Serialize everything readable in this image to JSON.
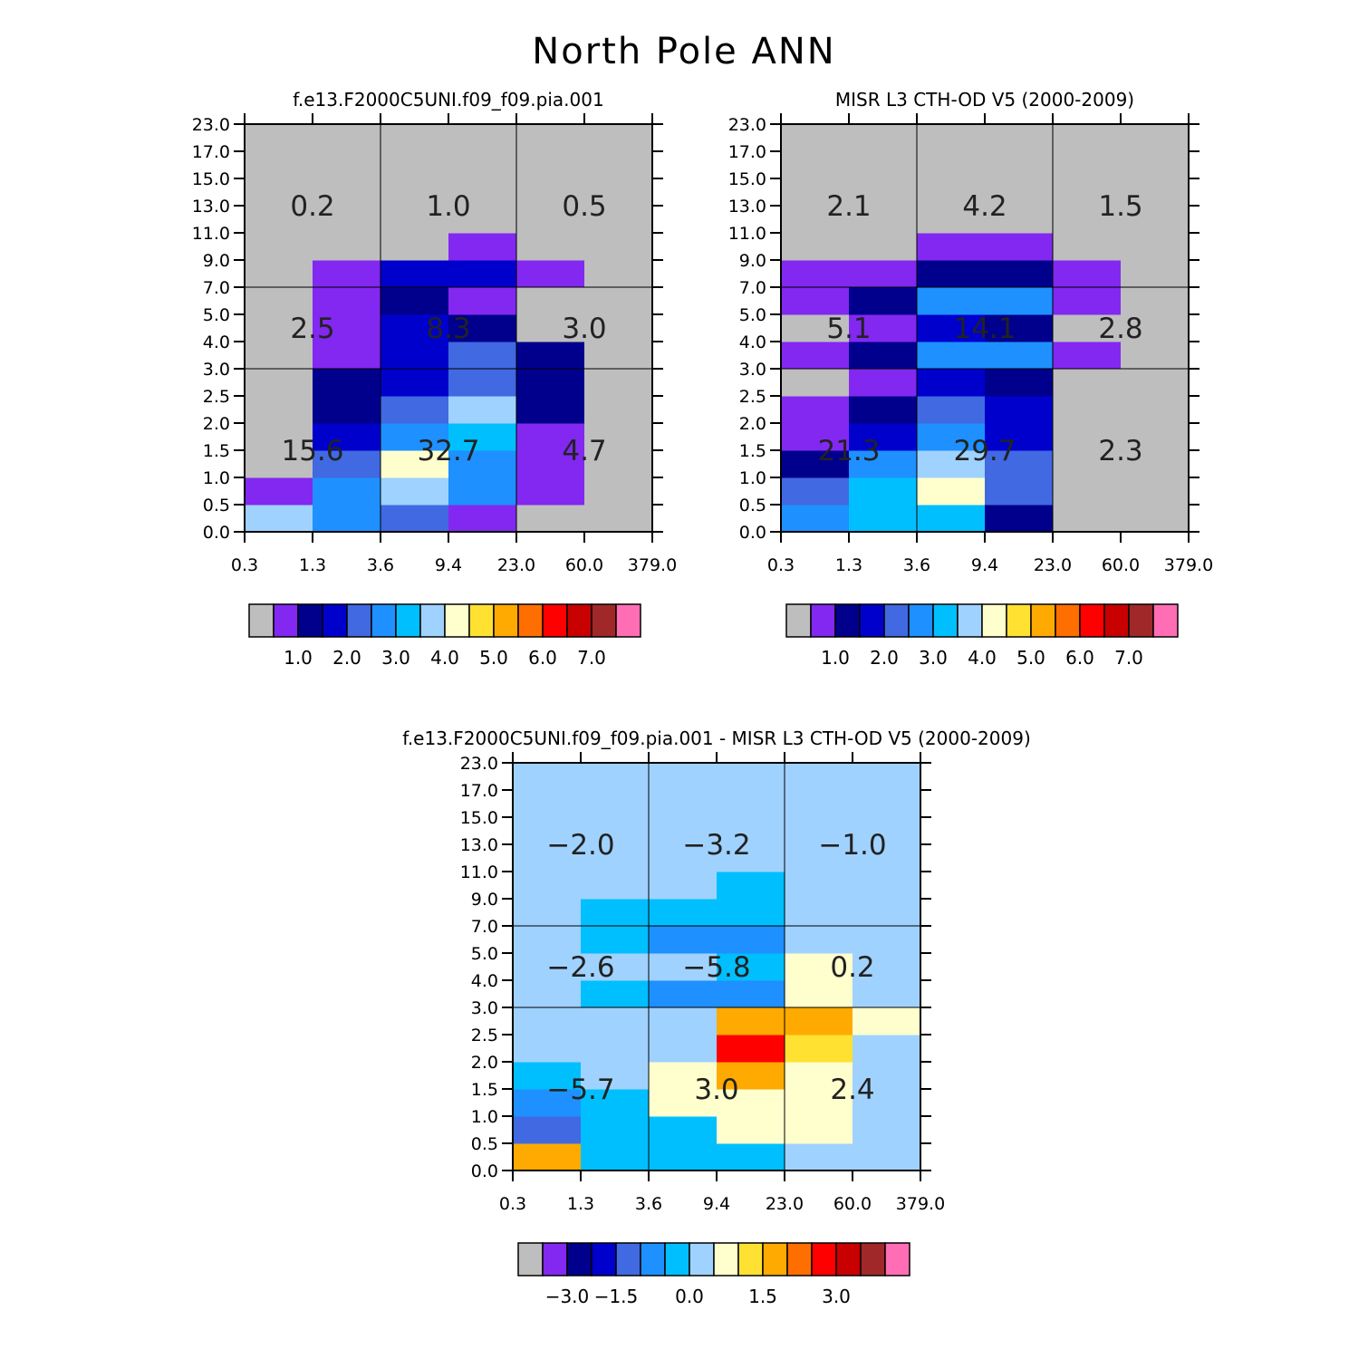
{
  "figure_title": "North Pole ANN",
  "chart_data": [
    {
      "type": "heatmap",
      "title": "f.e13.F2000C5UNI.f09_f09.pia.001",
      "x_tick_labels": [
        "0.3",
        "1.3",
        "3.6",
        "9.4",
        "23.0",
        "60.0",
        "379.0"
      ],
      "y_tick_labels": [
        "0.0",
        "0.5",
        "1.0",
        "1.5",
        "2.0",
        "2.5",
        "3.0",
        "4.0",
        "5.0",
        "7.0",
        "9.0",
        "11.0",
        "13.0",
        "15.0",
        "17.0",
        "23.0"
      ],
      "cells_row_major_bottom_to_top": [
        [
          3.9,
          3.1,
          2.7,
          1.0,
          0.0,
          0.0
        ],
        [
          1.0,
          3.1,
          3.9,
          3.1,
          1.0,
          0.0
        ],
        [
          0.0,
          2.7,
          4.3,
          3.1,
          1.0,
          0.0
        ],
        [
          0.0,
          2.1,
          3.1,
          3.4,
          1.0,
          0.0
        ],
        [
          0.0,
          1.6,
          2.6,
          3.9,
          1.6,
          0.0
        ],
        [
          0.0,
          1.6,
          2.1,
          2.6,
          1.6,
          0.0
        ],
        [
          0.0,
          1.0,
          2.1,
          2.6,
          1.6,
          0.0
        ],
        [
          0.0,
          1.0,
          2.1,
          1.6,
          0.0,
          0.0
        ],
        [
          0.0,
          1.0,
          1.6,
          1.0,
          0.0,
          0.0
        ],
        [
          0.0,
          1.0,
          2.1,
          2.1,
          1.0,
          0.0
        ],
        [
          0.0,
          0.0,
          0.0,
          1.0,
          0.0,
          0.0
        ],
        [
          0.0,
          0.0,
          0.0,
          0.0,
          0.0,
          0.0
        ],
        [
          0.0,
          0.0,
          0.0,
          0.0,
          0.0,
          0.0
        ],
        [
          0.0,
          0.0,
          0.0,
          0.0,
          0.0,
          0.0
        ],
        [
          0.0,
          0.0,
          0.0,
          0.0,
          0.0,
          0.0
        ]
      ],
      "group_sums": {
        "high": [
          "0.2",
          "1.0",
          "0.5"
        ],
        "middle": [
          "2.5",
          "8.3",
          "3.0"
        ],
        "low": [
          "15.6",
          "32.7",
          "4.7"
        ]
      },
      "colorbar": {
        "levels": [
          "",
          "1.0",
          "",
          "2.0",
          "",
          "3.0",
          "",
          "4.0",
          "",
          "5.0",
          "",
          "6.0",
          "",
          "7.0",
          ""
        ],
        "colors": [
          "#bebebe",
          "#8228f0",
          "#00008c",
          "#0000cd",
          "#4169e1",
          "#1e90ff",
          "#00bfff",
          "#a0d2ff",
          "#ffffcd",
          "#ffe132",
          "#ffaa00",
          "#ff6e00",
          "#ff0000",
          "#c80000",
          "#a02828",
          "#ff6eb4"
        ]
      },
      "palette_cutoffs": [
        0.5,
        1.25,
        1.75,
        2.25,
        2.75,
        3.25,
        3.75,
        4.25,
        4.75,
        5.25,
        5.75,
        6.25,
        6.75,
        7.25,
        7.75
      ]
    },
    {
      "type": "heatmap",
      "title": "MISR L3 CTH-OD V5 (2000-2009)",
      "x_tick_labels": [
        "0.3",
        "1.3",
        "3.6",
        "9.4",
        "23.0",
        "60.0",
        "379.0"
      ],
      "y_tick_labels": [
        "0.0",
        "0.5",
        "1.0",
        "1.5",
        "2.0",
        "2.5",
        "3.0",
        "4.0",
        "5.0",
        "7.0",
        "9.0",
        "11.0",
        "13.0",
        "15.0",
        "17.0",
        "23.0"
      ],
      "cells_row_major_bottom_to_top": [
        [
          3.1,
          3.5,
          3.5,
          1.6,
          0.0,
          0.0
        ],
        [
          2.7,
          3.5,
          4.5,
          2.7,
          0.0,
          0.0
        ],
        [
          1.6,
          3.1,
          4.0,
          2.7,
          0.0,
          0.0
        ],
        [
          1.0,
          2.1,
          3.1,
          2.1,
          0.0,
          0.0
        ],
        [
          1.0,
          1.6,
          2.7,
          2.1,
          0.0,
          0.0
        ],
        [
          0.0,
          1.0,
          2.1,
          1.6,
          0.0,
          0.0
        ],
        [
          1.0,
          1.6,
          3.1,
          3.1,
          1.0,
          0.0
        ],
        [
          0.0,
          1.0,
          2.1,
          1.6,
          0.0,
          0.0
        ],
        [
          1.0,
          1.6,
          3.1,
          3.1,
          1.0,
          0.0
        ],
        [
          1.0,
          1.0,
          1.6,
          1.6,
          1.0,
          0.0
        ],
        [
          0.0,
          0.0,
          1.0,
          1.0,
          0.0,
          0.0
        ],
        [
          0.0,
          0.0,
          0.0,
          0.0,
          0.0,
          0.0
        ],
        [
          0.0,
          0.0,
          0.0,
          0.0,
          0.0,
          0.0
        ],
        [
          0.0,
          0.0,
          0.0,
          0.0,
          0.0,
          0.0
        ],
        [
          0.0,
          0.0,
          0.0,
          0.0,
          0.0,
          0.0
        ]
      ],
      "group_sums": {
        "high": [
          "2.1",
          "4.2",
          "1.5"
        ],
        "middle": [
          "5.1",
          "14.1",
          "2.8"
        ],
        "low": [
          "21.3",
          "29.7",
          "2.3"
        ]
      },
      "colorbar": {
        "levels": [
          "",
          "1.0",
          "",
          "2.0",
          "",
          "3.0",
          "",
          "4.0",
          "",
          "5.0",
          "",
          "6.0",
          "",
          "7.0",
          ""
        ],
        "colors": [
          "#bebebe",
          "#8228f0",
          "#00008c",
          "#0000cd",
          "#4169e1",
          "#1e90ff",
          "#00bfff",
          "#a0d2ff",
          "#ffffcd",
          "#ffe132",
          "#ffaa00",
          "#ff6e00",
          "#ff0000",
          "#c80000",
          "#a02828",
          "#ff6eb4"
        ]
      },
      "palette_cutoffs": [
        0.5,
        1.25,
        1.75,
        2.25,
        2.75,
        3.25,
        3.75,
        4.25,
        4.75,
        5.25,
        5.75,
        6.25,
        6.75,
        7.25,
        7.75
      ]
    },
    {
      "type": "heatmap",
      "title": "f.e13.F2000C5UNI.f09_f09.pia.001 - MISR L3 CTH-OD V5 (2000-2009)",
      "x_tick_labels": [
        "0.3",
        "1.3",
        "3.6",
        "9.4",
        "23.0",
        "60.0",
        "379.0"
      ],
      "y_tick_labels": [
        "0.0",
        "0.5",
        "1.0",
        "1.5",
        "2.0",
        "2.5",
        "3.0",
        "4.0",
        "5.0",
        "7.0",
        "9.0",
        "11.0",
        "13.0",
        "15.0",
        "17.0",
        "23.0"
      ],
      "cells_row_major_bottom_to_top": [
        [
          1.25,
          -0.75,
          -0.75,
          -0.75,
          0.0,
          0.0
        ],
        [
          -2.0,
          -0.75,
          -0.75,
          0.25,
          0.25,
          0.0
        ],
        [
          -1.5,
          -0.75,
          0.25,
          0.25,
          0.25,
          0.0
        ],
        [
          -0.75,
          0.0,
          0.25,
          1.25,
          0.25,
          0.0
        ],
        [
          0.0,
          0.0,
          0.0,
          2.25,
          0.75,
          0.0
        ],
        [
          0.0,
          0.0,
          0.0,
          1.25,
          1.25,
          0.25
        ],
        [
          0.0,
          -0.75,
          -1.25,
          -1.25,
          0.25,
          0.0
        ],
        [
          0.0,
          0.0,
          0.0,
          -0.75,
          0.25,
          0.0
        ],
        [
          0.0,
          -0.75,
          -1.25,
          -1.25,
          0.0,
          0.0
        ],
        [
          0.0,
          -0.75,
          -0.75,
          -0.75,
          0.0,
          0.0
        ],
        [
          0.0,
          0.0,
          0.0,
          -0.75,
          0.0,
          0.0
        ],
        [
          0.0,
          0.0,
          0.0,
          0.0,
          0.0,
          0.0
        ],
        [
          0.0,
          0.0,
          0.0,
          0.0,
          0.0,
          0.0
        ],
        [
          0.0,
          0.0,
          0.0,
          0.0,
          0.0,
          0.0
        ],
        [
          0.0,
          0.0,
          0.0,
          0.0,
          0.0,
          0.0
        ]
      ],
      "group_sums": {
        "high": [
          "−2.0",
          "−3.2",
          "−1.0"
        ],
        "middle": [
          "−2.6",
          "−5.8",
          "0.2"
        ],
        "low": [
          "−5.7",
          "3.0",
          "2.4"
        ]
      },
      "colorbar": {
        "levels": [
          "",
          "−3.0",
          "",
          "−1.5",
          "",
          "",
          "0.0",
          "",
          "",
          "1.5",
          "",
          "",
          "3.0",
          "",
          ""
        ],
        "colors": [
          "#bebebe",
          "#8228f0",
          "#00008c",
          "#0000cd",
          "#4169e1",
          "#1e90ff",
          "#00bfff",
          "#a0d2ff",
          "#ffffcd",
          "#ffe132",
          "#ffaa00",
          "#ff6e00",
          "#ff0000",
          "#c80000",
          "#a02828",
          "#ff6eb4"
        ]
      },
      "palette_cutoffs": [
        -3.75,
        -3.25,
        -2.75,
        -2.25,
        -1.75,
        -1.0,
        -0.5,
        0.1,
        0.5,
        1.0,
        1.75,
        2.0,
        2.75,
        3.25,
        3.75
      ]
    }
  ]
}
